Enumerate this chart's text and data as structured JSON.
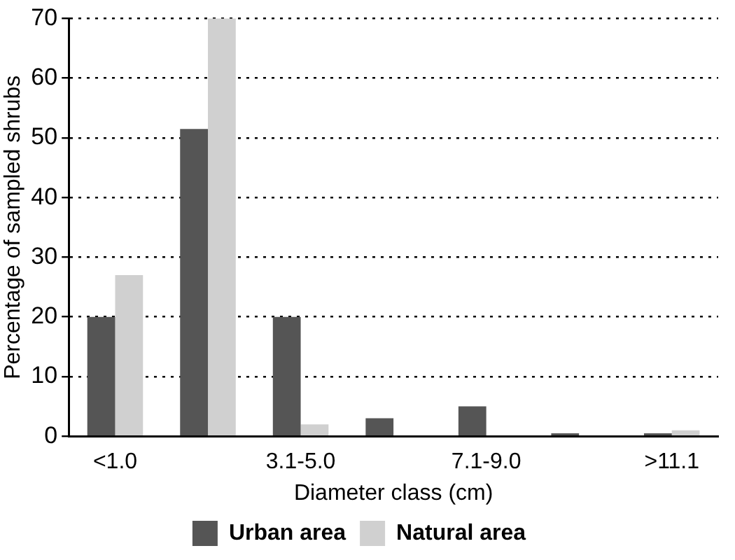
{
  "chart_data": {
    "type": "bar",
    "xlabel": "Diameter class (cm)",
    "ylabel": "Percentage of sampled shrubs",
    "categories": [
      "<1.0",
      null,
      "3.1-5.0",
      null,
      "7.1-9.0",
      null,
      ">11.1"
    ],
    "series": [
      {
        "name": "Urban area",
        "color": "#555555",
        "values": [
          20,
          51.5,
          20,
          3,
          5,
          0.5,
          0.5
        ]
      },
      {
        "name": "Natural area",
        "color": "#d0d0d0",
        "values": [
          27,
          70,
          2,
          0,
          0,
          0,
          1
        ]
      }
    ],
    "ylim": [
      0,
      70
    ],
    "yticks": [
      0,
      10,
      20,
      30,
      40,
      50,
      60,
      70
    ],
    "grid": "y",
    "legend": "bottom"
  }
}
